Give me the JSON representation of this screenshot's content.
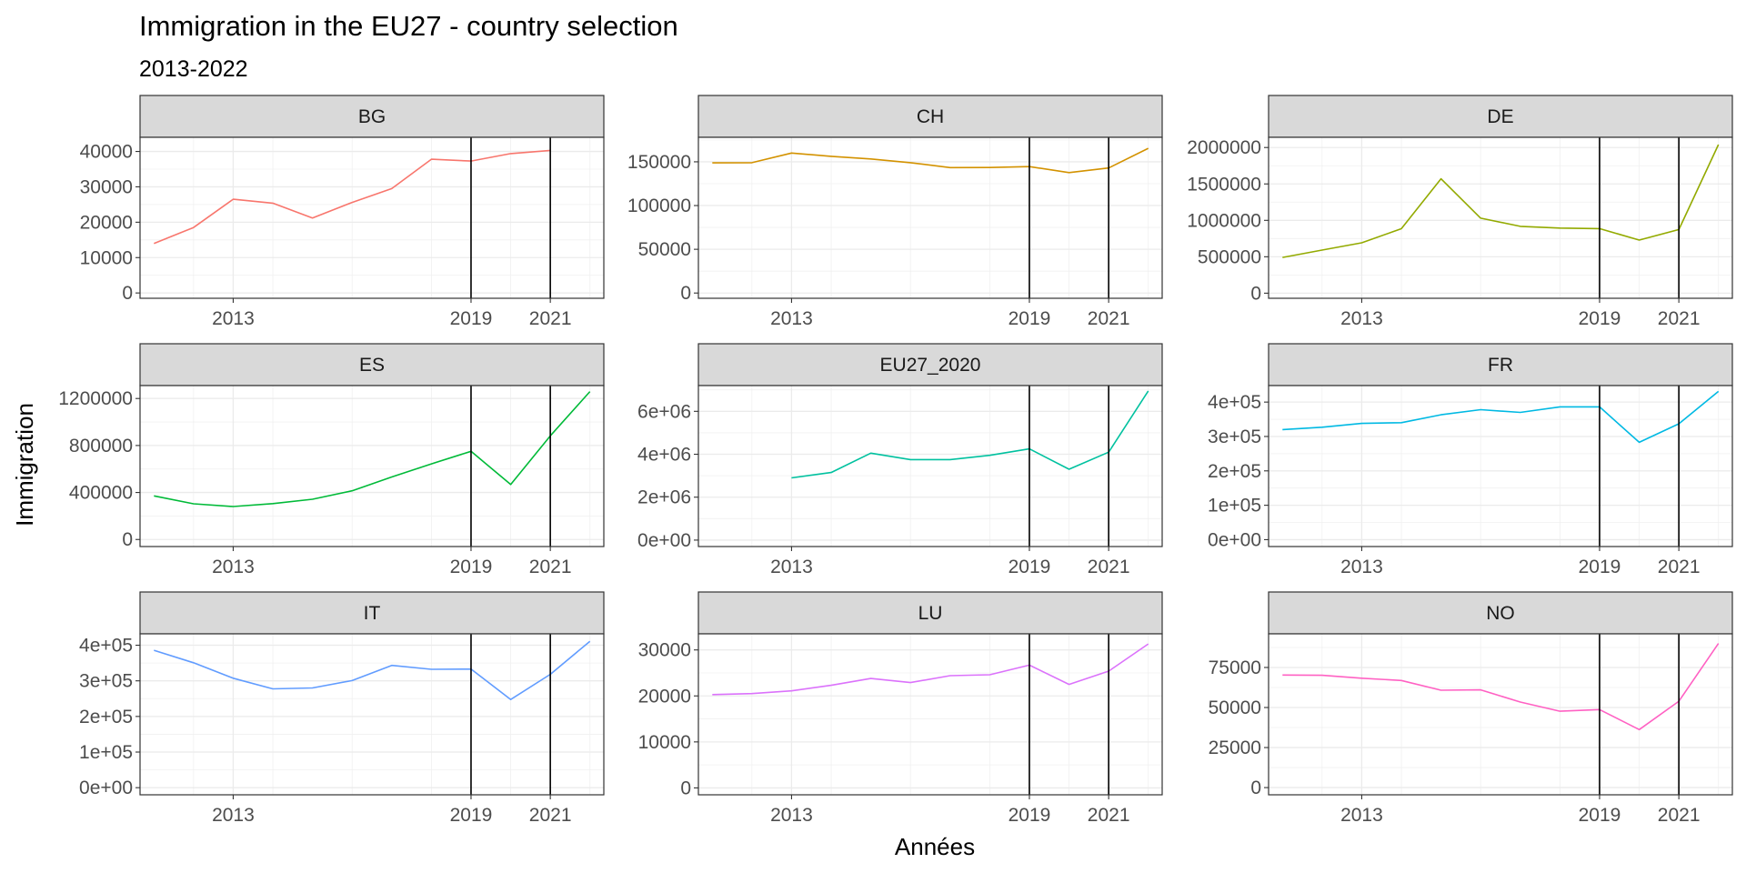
{
  "title": "Immigration in the EU27 - country selection",
  "subtitle": "2013-2022",
  "xlabel": "Années",
  "ylabel": "Immigration",
  "chart_data": [
    {
      "type": "line",
      "panel": "BG",
      "color": "#F8766D",
      "x": [
        2011,
        2012,
        2013,
        2014,
        2015,
        2016,
        2017,
        2018,
        2019,
        2020,
        2021,
        2022
      ],
      "values": [
        14000,
        18500,
        26500,
        25400,
        21200,
        25600,
        29500,
        37800,
        37300,
        39400,
        40300,
        null
      ],
      "xticks": [
        2013,
        2019,
        2021
      ],
      "vlines": [
        2019,
        2021
      ],
      "yticks": [
        0,
        10000,
        20000,
        30000,
        40000
      ],
      "ytick_labels": [
        "0",
        "10000",
        "20000",
        "30000",
        "40000"
      ],
      "ylim": [
        -1500,
        44000
      ]
    },
    {
      "type": "line",
      "panel": "CH",
      "color": "#D39200",
      "x": [
        2011,
        2012,
        2013,
        2014,
        2015,
        2016,
        2017,
        2018,
        2019,
        2020,
        2021,
        2022
      ],
      "values": [
        148800,
        149000,
        160000,
        156300,
        153300,
        149000,
        143400,
        143500,
        144500,
        137700,
        143000,
        165400
      ],
      "xticks": [
        2013,
        2019,
        2021
      ],
      "vlines": [
        2019,
        2021
      ],
      "yticks": [
        0,
        50000,
        100000,
        150000
      ],
      "ytick_labels": [
        "0",
        "50000",
        "100000",
        "150000"
      ],
      "ylim": [
        -6000,
        178000
      ]
    },
    {
      "type": "line",
      "panel": "DE",
      "color": "#93AA00",
      "x": [
        2011,
        2012,
        2013,
        2014,
        2015,
        2016,
        2017,
        2018,
        2019,
        2020,
        2021,
        2022
      ],
      "values": [
        490000,
        592000,
        692000,
        884900,
        1571000,
        1029900,
        917100,
        893900,
        886300,
        728600,
        874400,
        2040000
      ],
      "xticks": [
        2013,
        2019,
        2021
      ],
      "vlines": [
        2019,
        2021
      ],
      "yticks": [
        0,
        500000,
        1000000,
        1500000,
        2000000
      ],
      "ytick_labels": [
        "0",
        "500000",
        "1000000",
        "1500000",
        "2000000"
      ],
      "ylim": [
        -70000,
        2140000
      ]
    },
    {
      "type": "line",
      "panel": "ES",
      "color": "#00BA38",
      "x": [
        2011,
        2012,
        2013,
        2014,
        2015,
        2016,
        2017,
        2018,
        2019,
        2020,
        2021,
        2022
      ],
      "values": [
        371300,
        304100,
        280800,
        305500,
        342100,
        414700,
        532100,
        643700,
        750500,
        467900,
        883100,
        1258900
      ],
      "xticks": [
        2013,
        2019,
        2021
      ],
      "vlines": [
        2019,
        2021
      ],
      "yticks": [
        0,
        400000,
        800000,
        1200000
      ],
      "ytick_labels": [
        "0",
        "400000",
        "800000",
        "1200000"
      ],
      "ylim": [
        -60000,
        1310000
      ]
    },
    {
      "type": "line",
      "panel": "EU27_2020",
      "color": "#00C19F",
      "x": [
        2013,
        2014,
        2015,
        2016,
        2017,
        2018,
        2019,
        2020,
        2021,
        2022
      ],
      "values": [
        2900000,
        3150000,
        4050000,
        3750000,
        3750000,
        3950000,
        4250000,
        3300000,
        4100000,
        6950000
      ],
      "xticks": [
        2013,
        2019,
        2021
      ],
      "vlines": [
        2019,
        2021
      ],
      "yticks": [
        0,
        2000000,
        4000000,
        6000000
      ],
      "ytick_labels": [
        "0e+00",
        "2e+06",
        "4e+06",
        "6e+06"
      ],
      "ylim": [
        -300000,
        7200000
      ]
    },
    {
      "type": "line",
      "panel": "FR",
      "color": "#00B9E3",
      "x": [
        2011,
        2012,
        2013,
        2014,
        2015,
        2016,
        2017,
        2018,
        2019,
        2020,
        2021,
        2022
      ],
      "values": [
        320000,
        327000,
        338000,
        340000,
        363000,
        378000,
        370000,
        386000,
        386000,
        283000,
        337000,
        431000
      ],
      "xticks": [
        2013,
        2019,
        2021
      ],
      "vlines": [
        2019,
        2021
      ],
      "yticks": [
        0,
        100000,
        200000,
        300000,
        400000
      ],
      "ytick_labels": [
        "0e+00",
        "1e+05",
        "2e+05",
        "3e+05",
        "4e+05"
      ],
      "ylim": [
        -20000,
        448000
      ]
    },
    {
      "type": "line",
      "panel": "IT",
      "color": "#619CFF",
      "x": [
        2011,
        2012,
        2013,
        2014,
        2015,
        2016,
        2017,
        2018,
        2019,
        2020,
        2021,
        2022
      ],
      "values": [
        385800,
        350800,
        307500,
        277600,
        280100,
        300800,
        343400,
        332300,
        332800,
        247500,
        318400,
        411000
      ],
      "xticks": [
        2013,
        2019,
        2021
      ],
      "vlines": [
        2019,
        2021
      ],
      "yticks": [
        0,
        100000,
        200000,
        300000,
        400000
      ],
      "ytick_labels": [
        "0e+00",
        "1e+05",
        "2e+05",
        "3e+05",
        "4e+05"
      ],
      "ylim": [
        -20000,
        432000
      ]
    },
    {
      "type": "line",
      "panel": "LU",
      "color": "#DB72FB",
      "x": [
        2011,
        2012,
        2013,
        2014,
        2015,
        2016,
        2017,
        2018,
        2019,
        2020,
        2021,
        2022
      ],
      "values": [
        20300,
        20500,
        21100,
        22300,
        23800,
        22900,
        24400,
        24600,
        26700,
        22500,
        25400,
        31300
      ],
      "xticks": [
        2013,
        2019,
        2021
      ],
      "vlines": [
        2019,
        2021
      ],
      "yticks": [
        0,
        10000,
        20000,
        30000
      ],
      "ytick_labels": [
        "0",
        "10000",
        "20000",
        "30000"
      ],
      "ylim": [
        -1500,
        33500
      ]
    },
    {
      "type": "line",
      "panel": "NO",
      "color": "#FF61C3",
      "x": [
        2011,
        2012,
        2013,
        2014,
        2015,
        2016,
        2017,
        2018,
        2019,
        2020,
        2021,
        2022
      ],
      "values": [
        70300,
        70100,
        68300,
        66900,
        60800,
        61000,
        53400,
        47700,
        48700,
        36200,
        53900,
        90000
      ],
      "xticks": [
        2013,
        2019,
        2021
      ],
      "vlines": [
        2019,
        2021
      ],
      "yticks": [
        0,
        25000,
        50000,
        75000
      ],
      "ytick_labels": [
        "0",
        "25000",
        "50000",
        "75000"
      ],
      "ylim": [
        -4500,
        96000
      ]
    }
  ]
}
